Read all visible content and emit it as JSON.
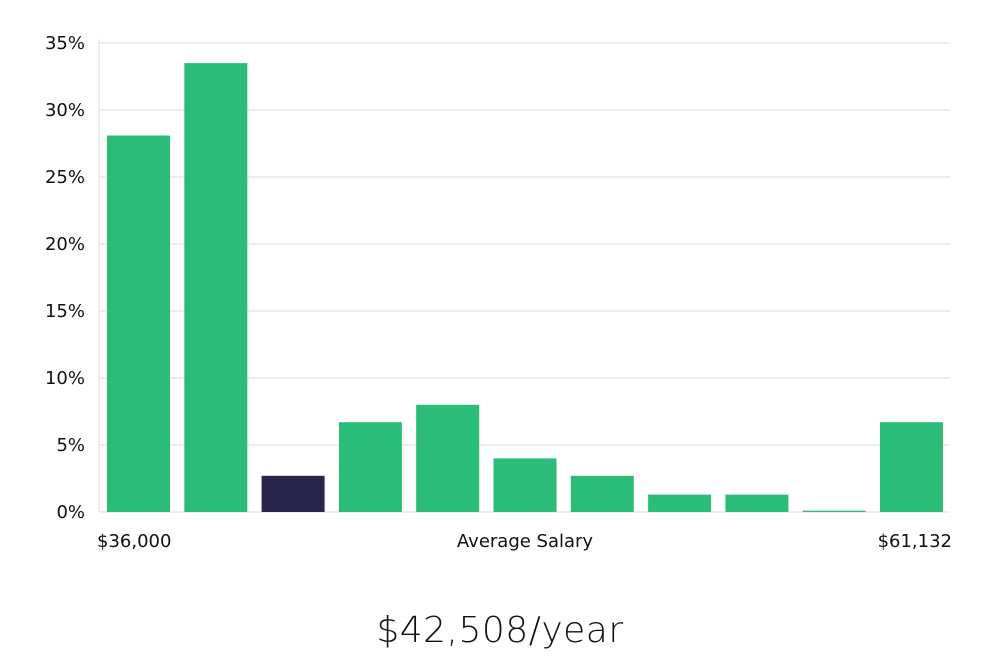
{
  "colors": {
    "bar": "#2bbd77",
    "highlight_bar": "#28244a",
    "grid": "#dcdcdc"
  },
  "chart_data": {
    "type": "bar",
    "categories": [
      "1",
      "2",
      "3",
      "4",
      "5",
      "6",
      "7",
      "8",
      "9",
      "10",
      "11"
    ],
    "values": [
      28.1,
      33.5,
      2.7,
      6.7,
      8.0,
      4.0,
      2.7,
      1.3,
      1.3,
      0.1,
      6.7
    ],
    "highlight_index": 2,
    "ylim": [
      0,
      35
    ],
    "yticks": [
      0,
      5,
      10,
      15,
      20,
      25,
      30,
      35
    ],
    "ytick_labels": [
      "0%",
      "5%",
      "10%",
      "15%",
      "20%",
      "25%",
      "30%",
      "35%"
    ],
    "x_min_label": "$36,000",
    "x_max_label": "$61,132",
    "xlabel": "Average Salary",
    "grid": true
  },
  "summary": {
    "salary": "$42,508/year"
  }
}
